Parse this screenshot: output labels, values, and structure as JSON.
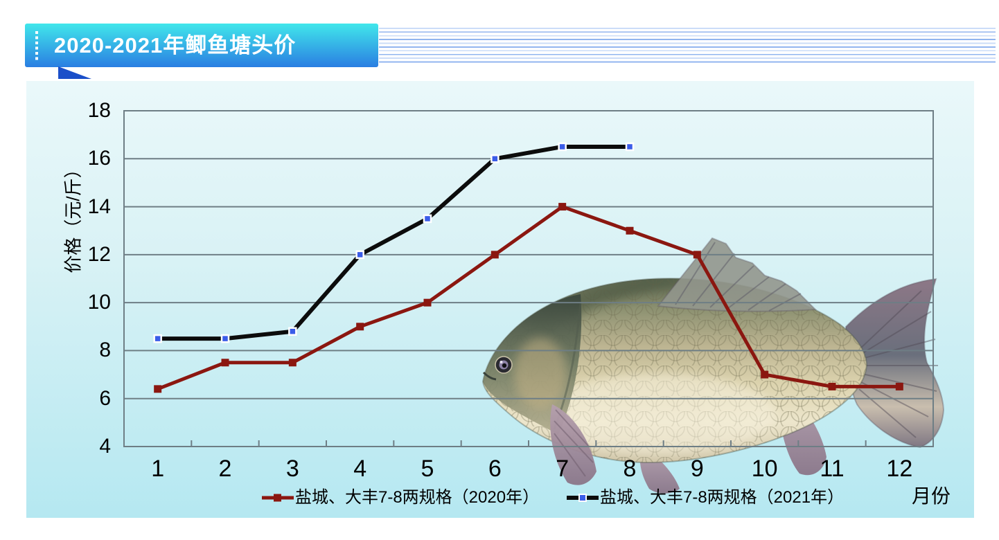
{
  "header": {
    "title": "2020-2021年鲫鱼塘头价"
  },
  "chart_data": {
    "type": "line",
    "title": "2020-2021年鲫鱼塘头价",
    "x": [
      1,
      2,
      3,
      4,
      5,
      6,
      7,
      8,
      9,
      10,
      11,
      12
    ],
    "series": [
      {
        "name": "盐城、大丰7-8两规格（2020年）",
        "color": "#8B1710",
        "marker": "square",
        "marker_color": "#8B1710",
        "marker_border": "none",
        "marker_size": 11,
        "line_width": 5,
        "values": [
          6.4,
          7.5,
          7.5,
          9,
          10,
          12,
          14,
          13,
          12,
          7,
          6.5,
          6.5
        ]
      },
      {
        "name": "盐城、大丰7-8两规格（2021年）",
        "color": "#0C0C0C",
        "marker": "square",
        "marker_color": "#3A5CE8",
        "marker_border": "#FFFFFF",
        "marker_size": 10,
        "line_width": 6,
        "values": [
          8.5,
          8.5,
          8.8,
          12,
          13.5,
          16,
          16.5,
          16.5
        ]
      }
    ],
    "ylabel": "价格（元/斤）",
    "xlabel": "月份",
    "ylim": [
      4,
      18
    ],
    "yticks": [
      4,
      6,
      8,
      10,
      12,
      14,
      16,
      18
    ],
    "grid": true,
    "legend_position": "bottom"
  },
  "colors": {
    "banner_gradient_top": "#41E7EB",
    "banner_gradient_bottom": "#2A7EE2",
    "banner_tail": "#1A4FC9",
    "stripe_light": "#CBDCF8",
    "stripe_dark": "#92B5EF",
    "panel_gradient_top": "#EAF8FA",
    "panel_gradient_bottom": "#B5E8F1",
    "gridline": "#6E7E85",
    "axis_frame": "#6E7E85",
    "series_2020": "#8B1710",
    "series_2021": "#0C0C0C",
    "marker_2021_blue": "#3A5CE8",
    "text": "#000000"
  }
}
